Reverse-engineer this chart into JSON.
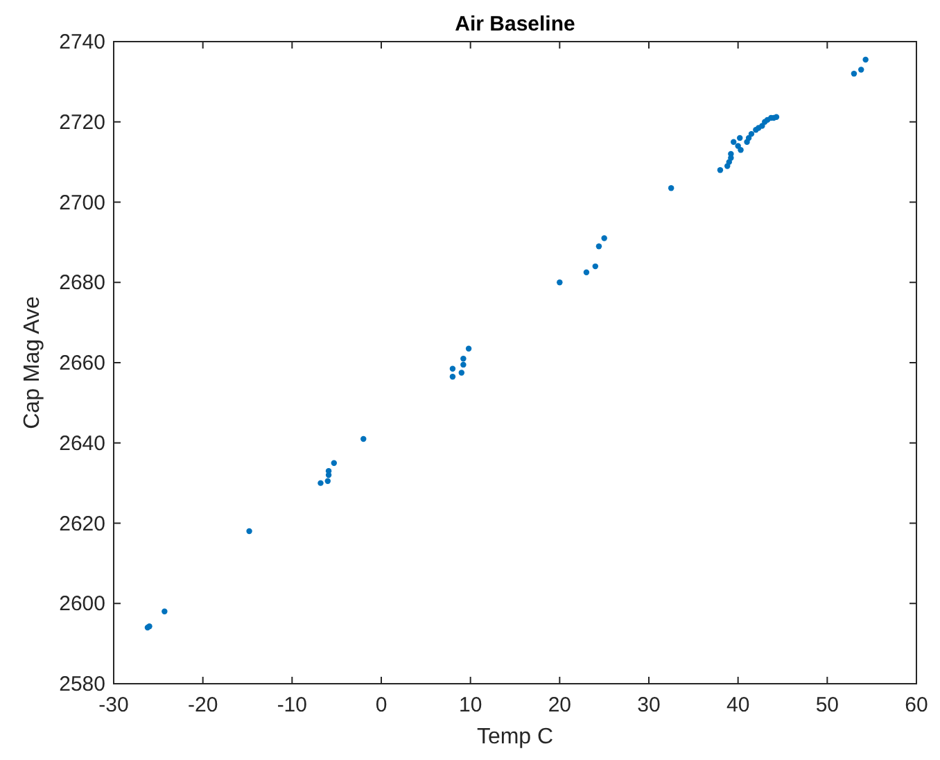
{
  "chart_data": {
    "type": "scatter",
    "title": "Air Baseline",
    "xlabel": "Temp C",
    "ylabel": "Cap Mag Ave",
    "x": [
      -26.2,
      -26,
      -24.3,
      -14.8,
      -6.8,
      -6,
      -5.9,
      -5.9,
      -5.3,
      -2,
      8,
      8,
      9,
      9.2,
      9.2,
      9.8,
      20,
      23,
      24,
      24.4,
      25,
      32.5,
      38,
      38.8,
      39,
      39.2,
      39.2,
      39.5,
      40,
      40.3,
      40.2,
      41,
      41.2,
      41.5,
      42,
      42.3,
      42.7,
      43,
      43.3,
      43.7,
      44,
      44.3,
      53,
      53.8,
      54.3
    ],
    "series": [
      {
        "color": "#0072bd",
        "values": [
          2594,
          2594.3,
          2598,
          2618,
          2630,
          2630.5,
          2632,
          2633,
          2635,
          2641,
          2656.5,
          2658.5,
          2657.5,
          2659.5,
          2661,
          2663.5,
          2680,
          2682.5,
          2684,
          2689,
          2691,
          2703.5,
          2708,
          2709,
          2710,
          2711,
          2712,
          2715,
          2714,
          2713,
          2716,
          2715,
          2716,
          2717,
          2718,
          2718.5,
          2719,
          2720,
          2720.5,
          2721,
          2721,
          2721.2,
          2732,
          2733,
          2735.5
        ]
      }
    ],
    "xlim": [
      -30,
      60
    ],
    "xticks": [
      -30,
      -20,
      -10,
      0,
      10,
      20,
      30,
      40,
      50,
      60
    ],
    "ylim": [
      2580,
      2740
    ],
    "yticks": [
      2580,
      2600,
      2620,
      2640,
      2660,
      2680,
      2700,
      2720,
      2740
    ],
    "marker": "circle"
  }
}
